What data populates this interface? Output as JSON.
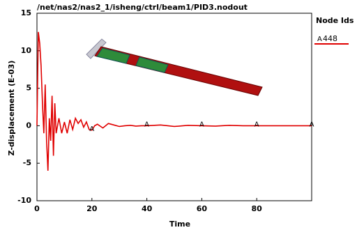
{
  "chart_data": {
    "type": "line",
    "title": "/net/nas2/nas2_1/isheng/ctrl/beam1/PID3.nodout",
    "xlabel": "Time",
    "ylabel": "Z-displacement (E-03)",
    "legend_title": "Node Ids",
    "xlim": [
      0,
      100
    ],
    "ylim": [
      -10,
      15
    ],
    "xticks": [
      0,
      20,
      40,
      60,
      80
    ],
    "yticks": [
      -10,
      -5,
      0,
      5,
      10,
      15
    ],
    "series": [
      {
        "name": "448",
        "color": "#e00000",
        "marker": "A",
        "marker_x": [
          20,
          40,
          60,
          80,
          100
        ],
        "x": [
          0,
          0.5,
          1,
          1.5,
          2,
          2.5,
          3,
          3.5,
          4,
          4.5,
          5,
          5.5,
          6,
          6.5,
          7,
          8,
          9,
          10,
          11,
          12,
          13,
          14,
          15,
          16,
          17,
          18,
          19,
          20,
          21,
          22,
          24,
          26,
          28,
          30,
          32,
          34,
          36,
          38,
          40,
          45,
          50,
          55,
          60,
          65,
          70,
          75,
          80,
          85,
          90,
          95,
          100
        ],
        "values": [
          0,
          12.5,
          11,
          8,
          3,
          -1,
          5.5,
          -2,
          -6,
          1,
          -2,
          4,
          -4,
          3,
          -1,
          1,
          -1,
          0.5,
          -1,
          0.8,
          -0.5,
          1,
          0.3,
          0.8,
          -0.2,
          0.5,
          -0.5,
          -0.6,
          0,
          0.2,
          -0.3,
          0.3,
          0.1,
          -0.1,
          0,
          0.05,
          -0.05,
          0,
          0,
          0.1,
          -0.1,
          0.05,
          0,
          -0.05,
          0.05,
          0,
          0,
          0,
          0,
          0,
          0
        ]
      }
    ]
  }
}
